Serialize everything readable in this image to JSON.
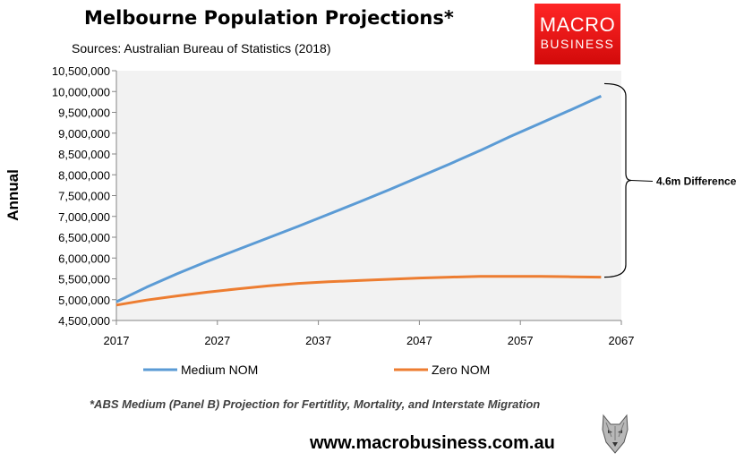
{
  "header": {
    "title": "Melbourne Population Projections*",
    "subtitle": "Sources: Australian Bureau of Statistics (2018)"
  },
  "logo": {
    "line1": "MACRO",
    "line2": "BUSINESS",
    "color": "#e8140f"
  },
  "footnote": "*ABS Medium (Panel B) Projection for Fertitlity, Mortality, and Interstate Migration",
  "website": "www.macrobusiness.com.au",
  "chart_data": {
    "type": "line",
    "title": "Melbourne Population Projections*",
    "xlabel": "",
    "ylabel": "Annual",
    "xlim": [
      2017,
      2067
    ],
    "ylim": [
      4500000,
      10500000
    ],
    "x_ticks": [
      "2017",
      "2027",
      "2037",
      "2047",
      "2057",
      "2067"
    ],
    "y_ticks": [
      "4,500,000",
      "5,000,000",
      "5,500,000",
      "6,000,000",
      "6,500,000",
      "7,000,000",
      "7,500,000",
      "8,000,000",
      "8,500,000",
      "9,000,000",
      "9,500,000",
      "10,000,000",
      "10,500,000"
    ],
    "grid": false,
    "plot_background": "#f2f2f2",
    "legend_position": "bottom",
    "x": [
      2017,
      2020,
      2023,
      2026,
      2029,
      2032,
      2035,
      2038,
      2041,
      2044,
      2047,
      2050,
      2053,
      2056,
      2059,
      2062,
      2065
    ],
    "series": [
      {
        "name": "Medium NOM",
        "color": "#5b9bd5",
        "values": [
          4950000,
          5300000,
          5620000,
          5920000,
          6200000,
          6480000,
          6760000,
          7050000,
          7340000,
          7640000,
          7950000,
          8260000,
          8580000,
          8920000,
          9240000,
          9560000,
          9890000
        ]
      },
      {
        "name": "Zero NOM",
        "color": "#ed7d31",
        "values": [
          4870000,
          4990000,
          5090000,
          5180000,
          5260000,
          5330000,
          5390000,
          5430000,
          5460000,
          5490000,
          5520000,
          5540000,
          5560000,
          5560000,
          5560000,
          5550000,
          5540000
        ]
      }
    ],
    "annotation": {
      "text": "4.6m Difference",
      "from": 10190000,
      "to": 5540000
    }
  }
}
